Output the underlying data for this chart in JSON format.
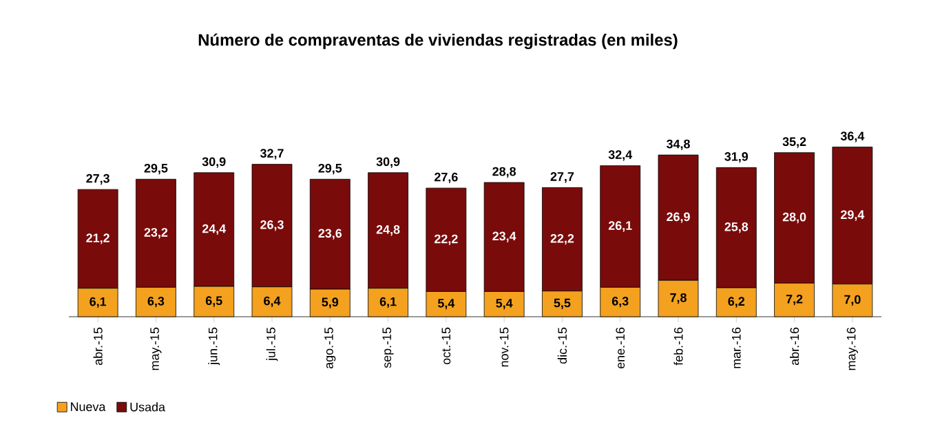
{
  "chart_data": {
    "type": "bar",
    "stacked": true,
    "title": "Número de compraventas de viviendas registradas (en miles)",
    "categories": [
      "abr.-15",
      "may.-15",
      "jun.-15",
      "jul.-15",
      "ago.-15",
      "sep.-15",
      "oct.-15",
      "nov.-15",
      "dic.-15",
      "ene.-16",
      "feb.-16",
      "mar.-16",
      "abr.-16",
      "may.-16"
    ],
    "series": [
      {
        "name": "Nueva",
        "color": "#f4a11f",
        "values": [
          6.1,
          6.3,
          6.5,
          6.4,
          5.9,
          6.1,
          5.4,
          5.4,
          5.5,
          6.3,
          7.8,
          6.2,
          7.2,
          7.0
        ],
        "value_labels": [
          "6,1",
          "6,3",
          "6,5",
          "6,4",
          "5,9",
          "6,1",
          "5,4",
          "5,4",
          "5,5",
          "6,3",
          "7,8",
          "6,2",
          "7,2",
          "7,0"
        ]
      },
      {
        "name": "Usada",
        "color": "#7a0b0b",
        "values": [
          21.2,
          23.2,
          24.4,
          26.3,
          23.6,
          24.8,
          22.2,
          23.4,
          22.2,
          26.1,
          26.9,
          25.8,
          28.0,
          29.4
        ],
        "value_labels": [
          "21,2",
          "23,2",
          "24,4",
          "26,3",
          "23,6",
          "24,8",
          "22,2",
          "23,4",
          "22,2",
          "26,1",
          "26,9",
          "25,8",
          "28,0",
          "29,4"
        ]
      }
    ],
    "totals": [
      "27,3",
      "29,5",
      "30,9",
      "32,7",
      "29,5",
      "30,9",
      "27,6",
      "28,8",
      "27,7",
      "32,4",
      "34,8",
      "31,9",
      "35,2",
      "36,4"
    ],
    "legend": "bottom left"
  }
}
